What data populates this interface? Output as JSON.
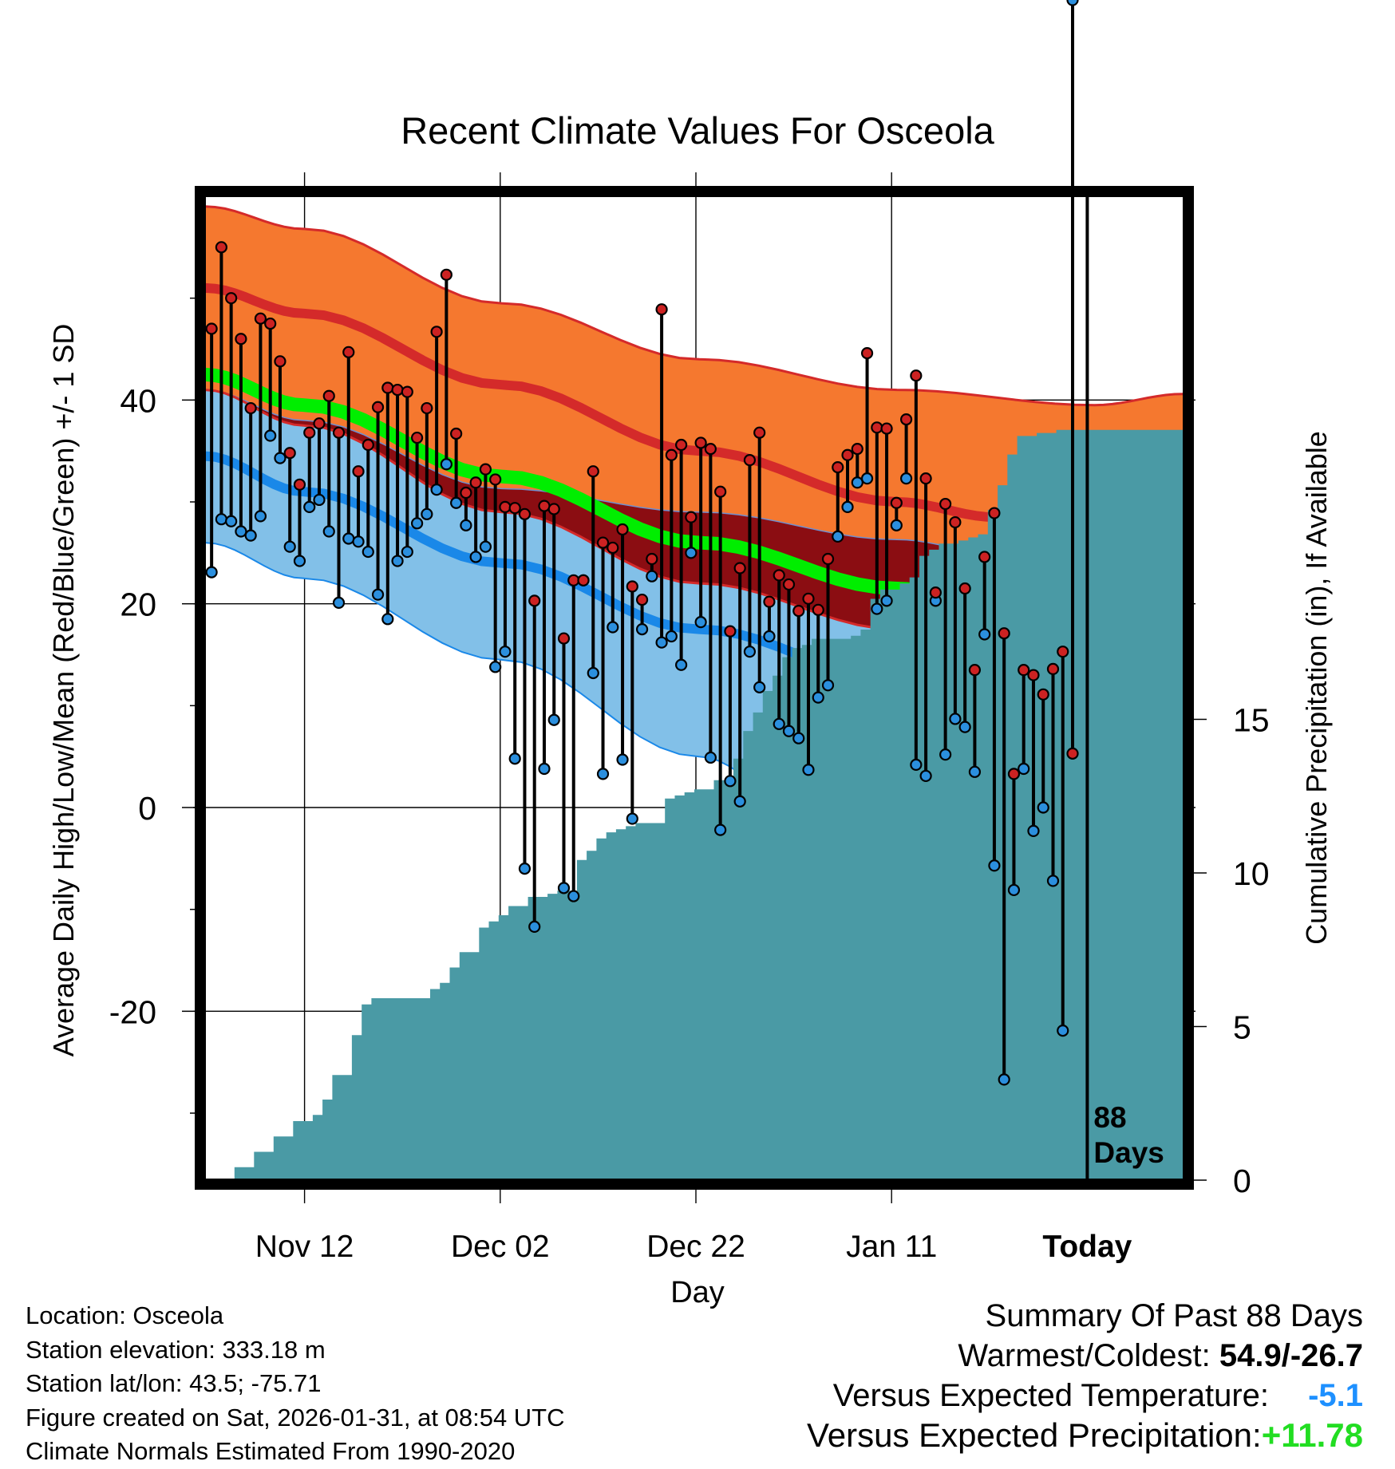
{
  "chart_data": {
    "type": "line",
    "title": "Recent Climate Values For Osceola",
    "xlabel": "Day",
    "ylabel": "Average Daily High/Low/Mean (Red/Blue/Green) +/- 1 SD",
    "y2label": "Cumulative Precipitation (in), If Available",
    "day_count": 100,
    "ylim": [
      -36.5,
      60
    ],
    "y2lim": [
      0,
      32
    ],
    "yticks": [
      "40",
      "20",
      "0",
      "-20"
    ],
    "ytick_values": [
      40,
      20,
      0,
      -20
    ],
    "y2ticks": [
      "0",
      "5",
      "10",
      "15"
    ],
    "y2tick_values": [
      0,
      5,
      10,
      15
    ],
    "xticks": [
      {
        "label": "Nov 12",
        "day": 10
      },
      {
        "label": "Dec 02",
        "day": 30
      },
      {
        "label": "Dec 22",
        "day": 50
      },
      {
        "label": "Jan 11",
        "day": 70
      },
      {
        "label": "Today",
        "day": 90
      }
    ],
    "today_day": 90,
    "days_label": [
      "88",
      "Days"
    ],
    "normals": {
      "high_mean": [
        [
          0,
          51
        ],
        [
          10,
          48.5
        ],
        [
          30,
          41.5
        ],
        [
          50,
          35
        ],
        [
          70,
          30
        ],
        [
          80,
          28.5
        ],
        [
          90,
          28.3
        ],
        [
          99,
          30
        ]
      ],
      "high_upper": [
        [
          0,
          59
        ],
        [
          10,
          56.8
        ],
        [
          30,
          49.5
        ],
        [
          50,
          44
        ],
        [
          70,
          41
        ],
        [
          90,
          39.5
        ],
        [
          99,
          40.6
        ]
      ],
      "low_mean": [
        [
          0,
          34.5
        ],
        [
          10,
          31
        ],
        [
          30,
          24
        ],
        [
          50,
          17.5
        ],
        [
          70,
          12.5
        ],
        [
          85,
          10.3
        ],
        [
          99,
          11.7
        ]
      ],
      "low_lower": [
        [
          0,
          26
        ],
        [
          10,
          22.5
        ],
        [
          30,
          14.5
        ],
        [
          50,
          5
        ],
        [
          60,
          0.5
        ],
        [
          70,
          -3
        ],
        [
          90,
          -9
        ],
        [
          99,
          -11
        ]
      ],
      "mean": [
        [
          0,
          42.5
        ],
        [
          10,
          39.5
        ],
        [
          30,
          32.5
        ],
        [
          50,
          26
        ],
        [
          70,
          21.5
        ],
        [
          80,
          20
        ],
        [
          90,
          20
        ],
        [
          99,
          21
        ]
      ],
      "mean_lower": [
        [
          0,
          41
        ],
        [
          10,
          37.5
        ],
        [
          30,
          29
        ],
        [
          50,
          22
        ],
        [
          70,
          17.5
        ],
        [
          80,
          16.5
        ],
        [
          90,
          17
        ],
        [
          99,
          19
        ]
      ],
      "mean_upper": [
        [
          0,
          41
        ],
        [
          10,
          38
        ],
        [
          30,
          31.3
        ],
        [
          50,
          29
        ],
        [
          70,
          26.3
        ],
        [
          80,
          25
        ],
        [
          90,
          24
        ],
        [
          99,
          24.5
        ]
      ]
    },
    "series": [
      {
        "name": "High",
        "color": "#cc2222",
        "values": [
          47,
          55,
          50,
          46,
          39.2,
          48,
          47.5,
          43.8,
          34.8,
          31.7,
          36.8,
          37.7,
          40.4,
          36.8,
          44.7,
          33,
          35.6,
          39.3,
          41.2,
          41,
          40.8,
          36.3,
          39.2,
          46.7,
          52.3,
          36.7,
          30.9,
          31.9,
          33.2,
          32.2,
          29.5,
          29.4,
          28.8,
          20.3,
          29.6,
          29.3,
          16.6,
          22.3,
          22.3,
          33,
          26,
          25.5,
          27.3,
          21.7,
          20.4,
          24.4,
          48.9,
          34.6,
          35.6,
          28.5,
          35.8,
          35.2,
          31,
          17.3,
          23.5,
          34.1,
          36.8,
          20.2,
          22.8,
          21.9,
          19.3,
          20.5,
          19.4,
          24.4,
          33.4,
          34.6,
          35.2,
          44.6,
          37.3,
          37.2,
          29.9,
          38.1,
          42.4,
          32.3,
          21.1,
          29.8,
          28,
          21.5,
          13.5,
          24.6,
          28.9,
          17.1,
          3.3,
          13.5,
          13,
          11.1,
          13.6,
          15.3,
          5.3
        ]
      },
      {
        "name": "Low",
        "color": "#2b8fde",
        "values": [
          23.1,
          28.3,
          28.1,
          27.1,
          26.7,
          28.6,
          36.5,
          34.3,
          25.6,
          24.2,
          29.5,
          30.2,
          27.1,
          20.1,
          26.4,
          26.1,
          25.1,
          20.9,
          18.5,
          24.2,
          25.1,
          27.9,
          28.8,
          31.2,
          33.7,
          29.9,
          27.7,
          24.6,
          25.6,
          13.8,
          15.3,
          4.8,
          -6,
          -11.7,
          3.8,
          8.6,
          -7.9,
          -8.7,
          22.3,
          13.2,
          3.3,
          17.7,
          4.7,
          -1.1,
          17.5,
          22.7,
          16.2,
          16.8,
          14,
          25,
          18.2,
          4.9,
          -2.2,
          2.6,
          0.6,
          15.3,
          11.8,
          16.8,
          8.2,
          7.5,
          6.8,
          3.7,
          10.8,
          12,
          26.6,
          29.5,
          31.9,
          32.3,
          19.5,
          20.3,
          27.7,
          32.3,
          4.2,
          3.1,
          20.3,
          5.2,
          8.7,
          7.9,
          3.5,
          17,
          -5.7,
          -26.7,
          -8.1,
          3.8,
          -2.3,
          0,
          -7.2,
          -21.9
        ]
      }
    ],
    "precip": [
      0,
      0,
      0,
      0.5,
      0.5,
      1,
      1,
      1.5,
      1.5,
      2,
      2,
      2.2,
      2.7,
      3.5,
      3.5,
      4.8,
      5.8,
      6,
      6,
      6,
      6,
      6,
      6,
      6.3,
      6.5,
      7,
      7.5,
      7.5,
      8.3,
      8.5,
      8.7,
      9,
      9,
      9.3,
      9.3,
      9.4,
      9.5,
      9.5,
      10.5,
      10.8,
      11.2,
      11.4,
      11.5,
      11.6,
      11.7,
      11.7,
      11.7,
      12.5,
      12.6,
      12.7,
      12.8,
      12.8,
      13.1,
      13.1,
      13.8,
      14.7,
      15.3,
      16,
      16.5,
      17.1,
      17.4,
      17.5,
      17.7,
      17.7,
      17.7,
      17.7,
      17.8,
      18,
      19,
      19.3,
      19.3,
      19.5,
      19.7,
      20.4,
      20.6,
      20.8,
      20.8,
      20.9,
      21,
      21.1,
      21.9,
      22.7,
      23.7,
      24.3,
      24.3,
      24.4,
      24.4,
      24.5,
      24.5,
      24.5,
      24.5,
      24.5,
      24.5,
      24.5,
      24.5,
      24.5,
      24.5,
      24.5,
      24.5,
      24.5
    ]
  },
  "footer": {
    "location": "Location: Osceola",
    "elevation": "Station elevation: 333.18 m",
    "latlon": "Station lat/lon: 43.5; -75.71",
    "created": "Figure created on Sat, 2026-01-31, at 08:54 UTC",
    "normals": "Climate Normals Estimated From 1990-2020"
  },
  "summary": {
    "title": "Summary Of Past 88 Days",
    "warmest_label": "Warmest/Coldest: ",
    "warmest_value": "54.9/-26.7",
    "temp_label": "Versus Expected Temperature:",
    "temp_value": "-5.1",
    "precip_label": "Versus Expected Precipitation:",
    "precip_value": "+11.78"
  },
  "colors": {
    "orange_band": "#f5782f",
    "high_line": "#d42a2a",
    "darkred_band": "#8b0d12",
    "green_line": "#00ee00",
    "lightblue_band": "#82c0e8",
    "low_line": "#1a88e8",
    "precip_fill": "#4a9aa5",
    "high_dot": "#cc2222",
    "low_dot": "#2b8fde"
  }
}
